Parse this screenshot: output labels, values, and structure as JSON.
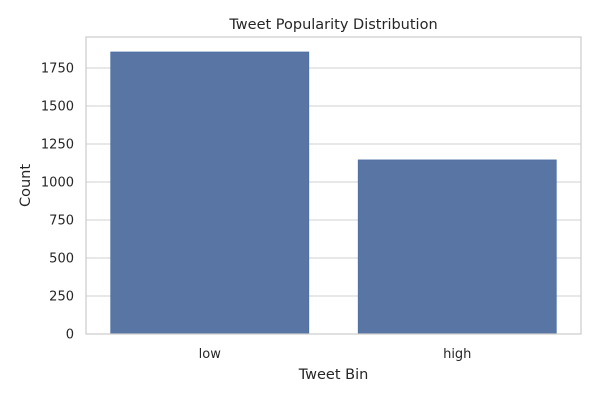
{
  "chart_data": {
    "type": "bar",
    "title": "Tweet Popularity Distribution",
    "xlabel": "Tweet Bin",
    "ylabel": "Count",
    "categories": [
      "low",
      "high"
    ],
    "values": [
      1855,
      1145
    ],
    "ylim": [
      0,
      1850
    ],
    "yticks": [
      0,
      250,
      500,
      750,
      1000,
      1250,
      1500,
      1750
    ],
    "grid": true,
    "bar_color": "#5975a4"
  }
}
